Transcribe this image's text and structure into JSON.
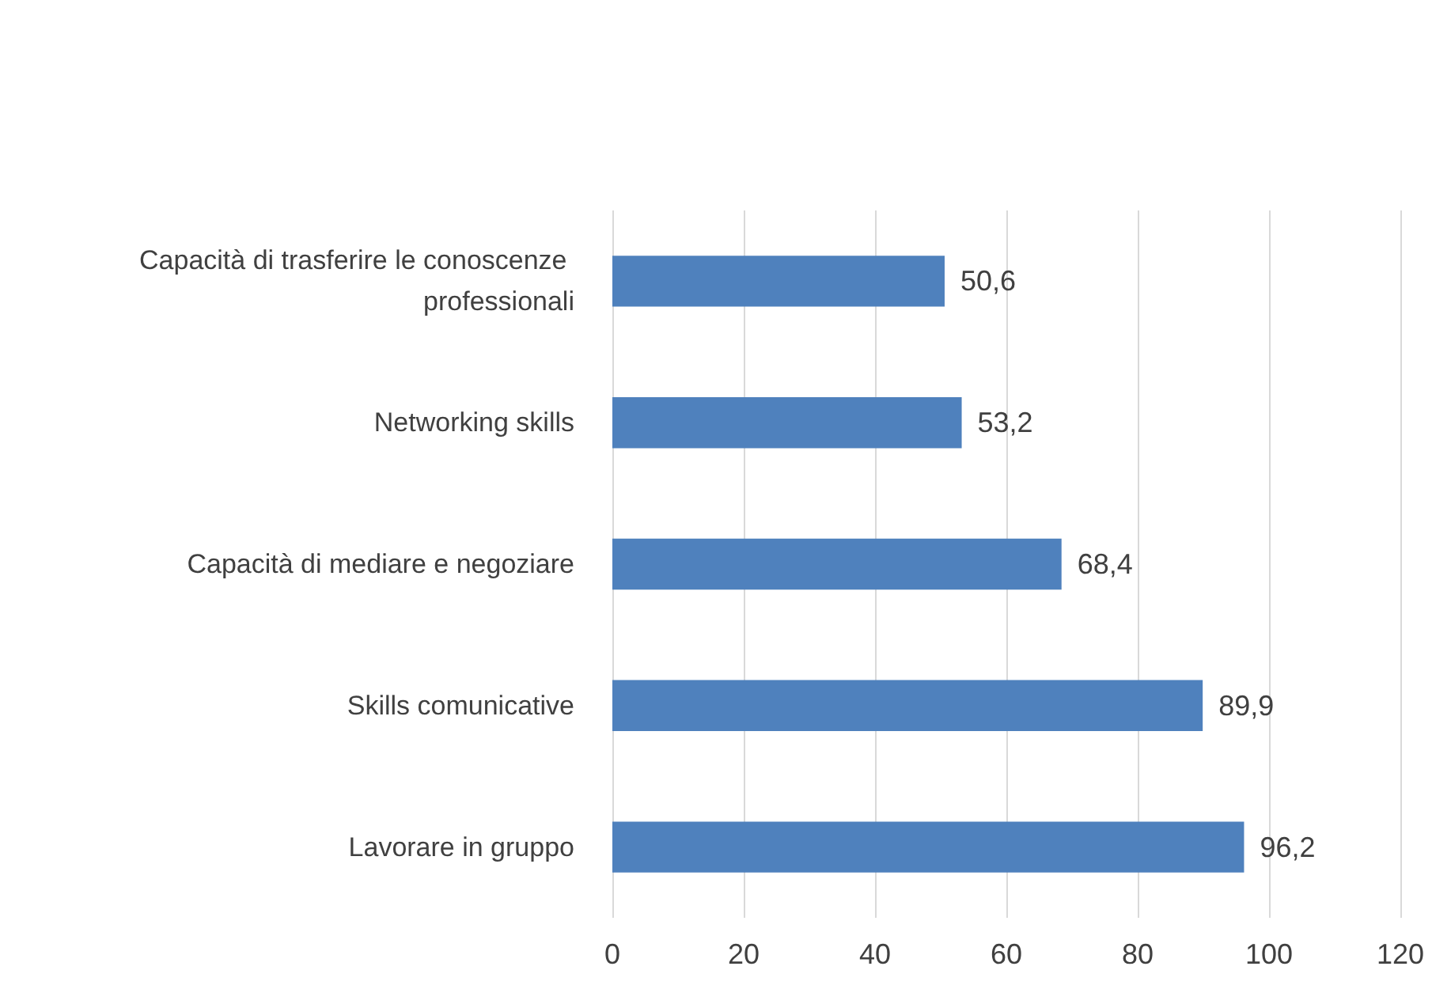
{
  "chart_data": {
    "type": "bar",
    "orientation": "horizontal",
    "categories": [
      "Capacità di trasferire le conoscenze professionali",
      "Networking skills",
      "Capacità di mediare e negoziare",
      "Skills comunicative",
      "Lavorare in gruppo"
    ],
    "values": [
      50.6,
      53.2,
      68.4,
      89.9,
      96.2
    ],
    "value_labels": [
      "50,6",
      "53,2",
      "68,4",
      "89,9",
      "96,2"
    ],
    "color": "#4f81bd",
    "xlim": [
      0,
      120
    ],
    "xticks": [
      0,
      20,
      40,
      60,
      80,
      100,
      120
    ],
    "grid": "x"
  }
}
